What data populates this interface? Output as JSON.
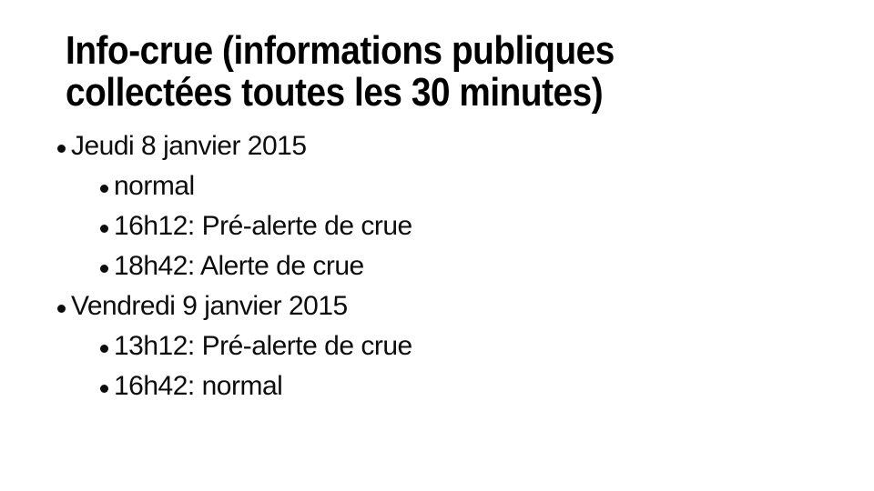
{
  "slide": {
    "background_color": "#ffffff",
    "text_color": "#000000",
    "title": {
      "lines": [
        "Info-crue (informations publiques",
        "collectées toutes les 30 minutes)"
      ]
    },
    "days": [
      {
        "label": "Jeudi 8 janvier 2015",
        "events": [
          "normal",
          "16h12: Pré-alerte de crue",
          "18h42: Alerte de crue"
        ]
      },
      {
        "label": "Vendredi 9 janvier 2015",
        "events": [
          "13h12: Pré-alerte de crue",
          "16h42: normal"
        ]
      }
    ]
  }
}
